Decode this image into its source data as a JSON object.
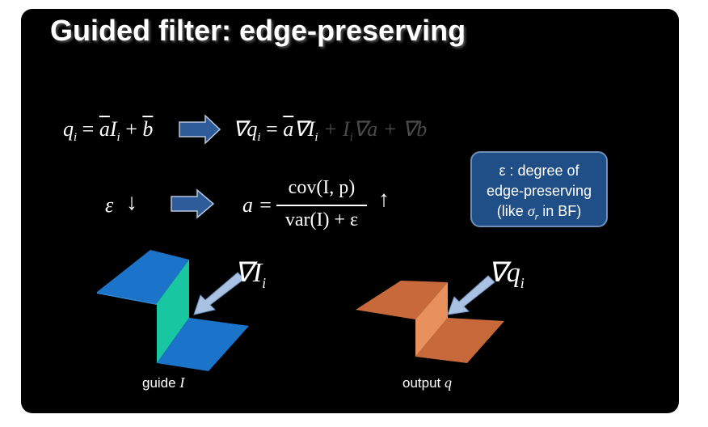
{
  "slide": {
    "title": "Guided filter: edge-preserving",
    "eq1_left": "q",
    "eq1_left_sub": "i",
    "eq1_eq": "= ",
    "eq1_a": "a",
    "eq1_I": "I",
    "eq1_I_sub": "i",
    "eq1_plus": " + ",
    "eq1_b": "b",
    "eq1_right_nabla_q": "∇q",
    "eq1_right_sub": "i",
    "eq1_right_eq": " = ",
    "eq1_right_a": "a",
    "eq1_right_nablaI": "∇I",
    "eq1_right_nablaI_sub": "i",
    "eq1_faded": "+ I",
    "eq1_faded_sub": "i",
    "eq1_faded_rest": "∇a + ∇b",
    "eps_symbol": "ε",
    "down_arrow": "↓",
    "a_eq": "a =",
    "numerator": "cov(I, p)",
    "denominator": "var(I) + ε",
    "up_arrow": "↑",
    "callout_line1": "ε : degree of",
    "callout_line2": "edge-preserving",
    "callout_line3_pre": "(like ",
    "callout_line3_sigma": "σ",
    "callout_line3_sub": "r",
    "callout_line3_post": " in BF)",
    "grad_I": "∇I",
    "grad_I_sub": "i",
    "grad_q": "∇q",
    "grad_q_sub": "i",
    "guide_label": "guide ",
    "guide_var": "I",
    "output_label": "output ",
    "output_var": "q"
  },
  "colors": {
    "slide_bg": "#000000",
    "callout_bg": "#1f4f86",
    "arrow_fill": "#2e5c9a",
    "guide_blue": "#1b74c9",
    "guide_teal": "#19c6a2",
    "output_brown": "#c8693c",
    "output_light": "#e9915c",
    "pointer_arrow": "#a9c1e3"
  }
}
